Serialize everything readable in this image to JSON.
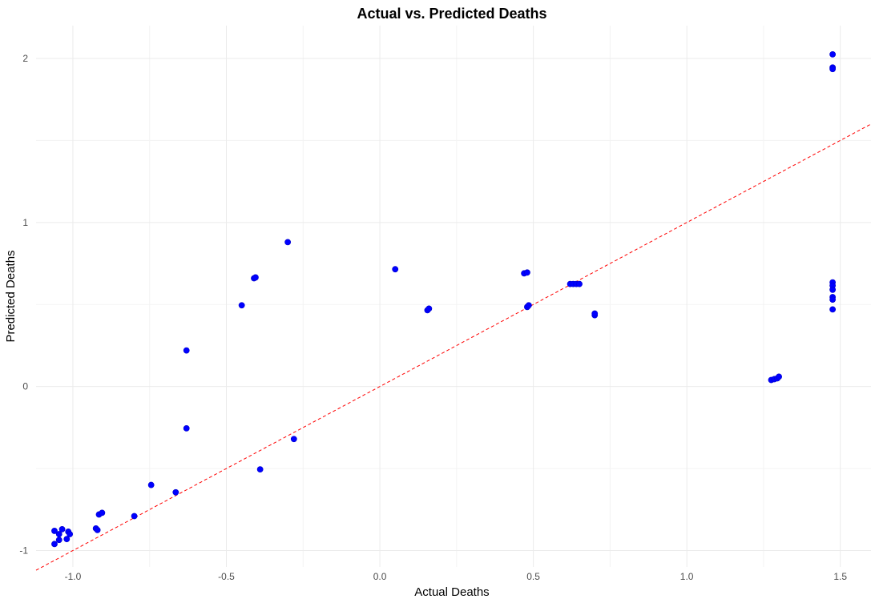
{
  "chart_data": {
    "type": "scatter",
    "title": "Actual vs. Predicted Deaths",
    "xlabel": "Actual Deaths",
    "ylabel": "Predicted Deaths",
    "xlim": [
      -1.12,
      1.6
    ],
    "ylim": [
      -1.1,
      2.2
    ],
    "x_ticks": [
      -1.0,
      -0.5,
      0.0,
      0.5,
      1.0,
      1.5
    ],
    "x_tick_labels": [
      "-1.0",
      "-0.5",
      "0.0",
      "0.5",
      "1.0",
      "1.5"
    ],
    "y_ticks": [
      -1,
      0,
      1,
      2
    ],
    "y_tick_labels": [
      "-1",
      "0",
      "1",
      "2"
    ],
    "grid": true,
    "reference_line": {
      "slope": 1,
      "intercept": 0,
      "color": "#ff0000",
      "style": "dashed"
    },
    "point_color": "#0000ff",
    "points": [
      {
        "x": -1.06,
        "y": -0.96
      },
      {
        "x": -1.06,
        "y": -0.88
      },
      {
        "x": -1.045,
        "y": -0.9
      },
      {
        "x": -1.045,
        "y": -0.935
      },
      {
        "x": -1.035,
        "y": -0.87
      },
      {
        "x": -1.02,
        "y": -0.93
      },
      {
        "x": -1.015,
        "y": -0.885
      },
      {
        "x": -1.01,
        "y": -0.9
      },
      {
        "x": -0.925,
        "y": -0.865
      },
      {
        "x": -0.92,
        "y": -0.875
      },
      {
        "x": -0.915,
        "y": -0.78
      },
      {
        "x": -0.905,
        "y": -0.77
      },
      {
        "x": -0.8,
        "y": -0.79
      },
      {
        "x": -0.745,
        "y": -0.6
      },
      {
        "x": -0.665,
        "y": -0.645
      },
      {
        "x": -0.63,
        "y": -0.255
      },
      {
        "x": -0.63,
        "y": 0.22
      },
      {
        "x": -0.45,
        "y": 0.495
      },
      {
        "x": -0.41,
        "y": 0.66
      },
      {
        "x": -0.405,
        "y": 0.665
      },
      {
        "x": -0.39,
        "y": -0.505
      },
      {
        "x": -0.3,
        "y": 0.88
      },
      {
        "x": -0.28,
        "y": -0.32
      },
      {
        "x": 0.05,
        "y": 0.715
      },
      {
        "x": 0.155,
        "y": 0.465
      },
      {
        "x": 0.16,
        "y": 0.475
      },
      {
        "x": 0.47,
        "y": 0.69
      },
      {
        "x": 0.48,
        "y": 0.695
      },
      {
        "x": 0.48,
        "y": 0.485
      },
      {
        "x": 0.485,
        "y": 0.495
      },
      {
        "x": 0.62,
        "y": 0.625
      },
      {
        "x": 0.63,
        "y": 0.625
      },
      {
        "x": 0.64,
        "y": 0.625
      },
      {
        "x": 0.65,
        "y": 0.625
      },
      {
        "x": 0.7,
        "y": 0.435
      },
      {
        "x": 0.7,
        "y": 0.445
      },
      {
        "x": 1.275,
        "y": 0.04
      },
      {
        "x": 1.285,
        "y": 0.045
      },
      {
        "x": 1.295,
        "y": 0.05
      },
      {
        "x": 1.3,
        "y": 0.06
      },
      {
        "x": 1.475,
        "y": 2.025
      },
      {
        "x": 1.475,
        "y": 1.945
      },
      {
        "x": 1.475,
        "y": 1.935
      },
      {
        "x": 1.475,
        "y": 0.635
      },
      {
        "x": 1.475,
        "y": 0.615
      },
      {
        "x": 1.475,
        "y": 0.59
      },
      {
        "x": 1.475,
        "y": 0.545
      },
      {
        "x": 1.475,
        "y": 0.53
      },
      {
        "x": 1.475,
        "y": 0.47
      }
    ]
  }
}
